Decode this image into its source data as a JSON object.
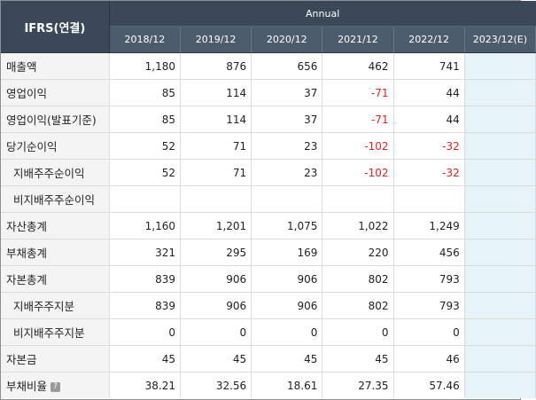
{
  "header": {
    "corner_label": "IFRS(연결)",
    "period_group": "Annual",
    "years": [
      "2018/12",
      "2019/12",
      "2020/12",
      "2021/12",
      "2022/12",
      "2023/12(E)"
    ]
  },
  "colors": {
    "header_bg": "#3a4858",
    "year_bg": "#4c5c6d",
    "negative": "#e62020",
    "estimate_bg": "#e6f3f8"
  },
  "rows": [
    {
      "label": "매출액",
      "sub": false,
      "values": [
        "1,180",
        "876",
        "656",
        "462",
        "741"
      ],
      "estimate": ""
    },
    {
      "label": "영업이익",
      "sub": false,
      "values": [
        "85",
        "114",
        "37",
        "-71",
        "44"
      ],
      "estimate": ""
    },
    {
      "label": "영업이익(발표기준)",
      "sub": false,
      "values": [
        "85",
        "114",
        "37",
        "-71",
        "44"
      ],
      "estimate": ""
    },
    {
      "label": "당기순이익",
      "sub": false,
      "values": [
        "52",
        "71",
        "23",
        "-102",
        "-32"
      ],
      "estimate": ""
    },
    {
      "label": "지배주주순이익",
      "sub": true,
      "values": [
        "52",
        "71",
        "23",
        "-102",
        "-32"
      ],
      "estimate": ""
    },
    {
      "label": "비지배주주순이익",
      "sub": true,
      "values": [
        "",
        "",
        "",
        "",
        ""
      ],
      "estimate": ""
    },
    {
      "label": "자산총계",
      "sub": false,
      "values": [
        "1,160",
        "1,201",
        "1,075",
        "1,022",
        "1,249"
      ],
      "estimate": ""
    },
    {
      "label": "부채총계",
      "sub": false,
      "values": [
        "321",
        "295",
        "169",
        "220",
        "456"
      ],
      "estimate": ""
    },
    {
      "label": "자본총계",
      "sub": false,
      "values": [
        "839",
        "906",
        "906",
        "802",
        "793"
      ],
      "estimate": ""
    },
    {
      "label": "지배주주지분",
      "sub": true,
      "values": [
        "839",
        "906",
        "906",
        "802",
        "793"
      ],
      "estimate": ""
    },
    {
      "label": "비지배주주지분",
      "sub": true,
      "values": [
        "0",
        "0",
        "0",
        "0",
        "0"
      ],
      "estimate": ""
    },
    {
      "label": "자본금",
      "sub": false,
      "values": [
        "45",
        "45",
        "45",
        "45",
        "46"
      ],
      "estimate": ""
    },
    {
      "label": "부채비율",
      "sub": false,
      "help": true,
      "help_glyph": "?",
      "values": [
        "38.21",
        "32.56",
        "18.61",
        "27.35",
        "57.46"
      ],
      "estimate": ""
    }
  ]
}
